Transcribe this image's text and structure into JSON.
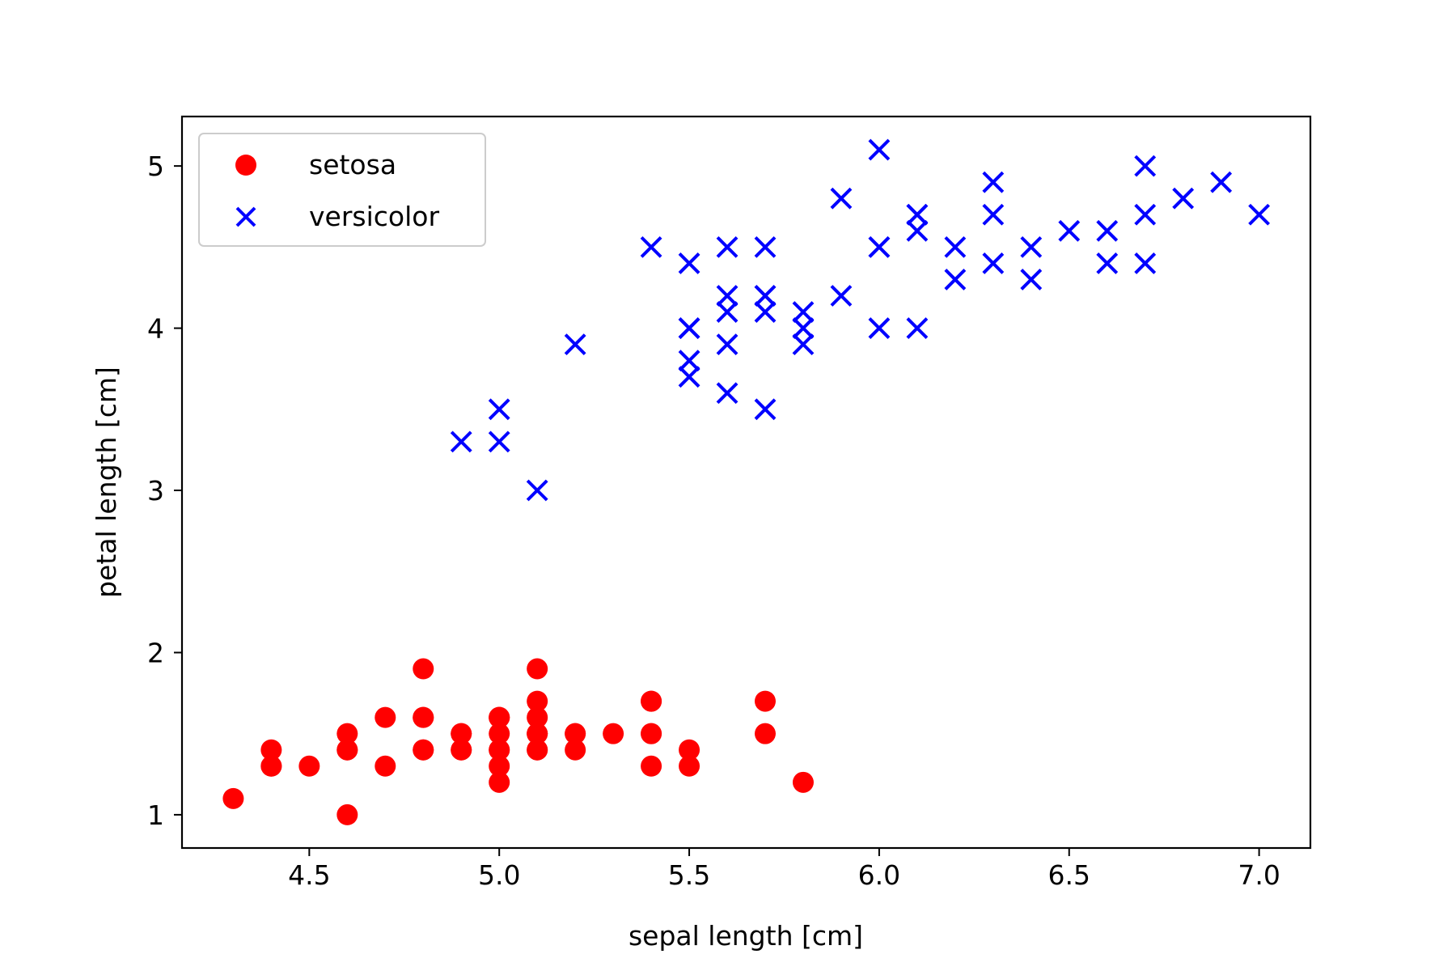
{
  "chart_data": {
    "type": "scatter",
    "title": "",
    "xlabel": "sepal length [cm]",
    "ylabel": "petal length [cm]",
    "xlim": [
      4.165,
      7.135
    ],
    "ylim": [
      0.795,
      5.305
    ],
    "xticks": [
      4.5,
      5.0,
      5.5,
      6.0,
      6.5,
      7.0
    ],
    "xtick_labels": [
      "4.5",
      "5.0",
      "5.5",
      "6.0",
      "6.5",
      "7.0"
    ],
    "yticks": [
      1,
      2,
      3,
      4,
      5
    ],
    "ytick_labels": [
      "1",
      "2",
      "3",
      "4",
      "5"
    ],
    "grid": false,
    "legend_position": "top-left",
    "series": [
      {
        "name": "setosa",
        "marker": "circle",
        "color": "#ff0000",
        "points": [
          [
            5.1,
            1.4
          ],
          [
            4.9,
            1.4
          ],
          [
            4.7,
            1.3
          ],
          [
            4.6,
            1.5
          ],
          [
            5.0,
            1.4
          ],
          [
            5.4,
            1.7
          ],
          [
            4.6,
            1.4
          ],
          [
            5.0,
            1.5
          ],
          [
            4.4,
            1.4
          ],
          [
            4.9,
            1.5
          ],
          [
            5.4,
            1.5
          ],
          [
            4.8,
            1.6
          ],
          [
            4.8,
            1.4
          ],
          [
            4.3,
            1.1
          ],
          [
            5.8,
            1.2
          ],
          [
            5.7,
            1.5
          ],
          [
            5.4,
            1.3
          ],
          [
            5.1,
            1.4
          ],
          [
            5.7,
            1.7
          ],
          [
            5.1,
            1.5
          ],
          [
            5.4,
            1.7
          ],
          [
            5.1,
            1.5
          ],
          [
            4.6,
            1.0
          ],
          [
            5.1,
            1.7
          ],
          [
            4.8,
            1.9
          ],
          [
            5.0,
            1.6
          ],
          [
            5.0,
            1.6
          ],
          [
            5.2,
            1.5
          ],
          [
            5.2,
            1.4
          ],
          [
            4.7,
            1.6
          ],
          [
            4.8,
            1.6
          ],
          [
            5.4,
            1.5
          ],
          [
            5.2,
            1.5
          ],
          [
            5.5,
            1.4
          ],
          [
            4.9,
            1.5
          ],
          [
            5.0,
            1.2
          ],
          [
            5.5,
            1.3
          ],
          [
            4.9,
            1.4
          ],
          [
            4.4,
            1.3
          ],
          [
            5.1,
            1.5
          ],
          [
            5.0,
            1.3
          ],
          [
            4.5,
            1.3
          ],
          [
            4.4,
            1.3
          ],
          [
            5.0,
            1.6
          ],
          [
            5.1,
            1.9
          ],
          [
            4.8,
            1.4
          ],
          [
            5.1,
            1.6
          ],
          [
            4.6,
            1.4
          ],
          [
            5.3,
            1.5
          ],
          [
            5.0,
            1.4
          ]
        ]
      },
      {
        "name": "versicolor",
        "marker": "x",
        "color": "#0000ff",
        "points": [
          [
            7.0,
            4.7
          ],
          [
            6.4,
            4.5
          ],
          [
            6.9,
            4.9
          ],
          [
            5.5,
            4.0
          ],
          [
            6.5,
            4.6
          ],
          [
            5.7,
            4.5
          ],
          [
            6.3,
            4.7
          ],
          [
            4.9,
            3.3
          ],
          [
            6.6,
            4.6
          ],
          [
            5.2,
            3.9
          ],
          [
            5.0,
            3.5
          ],
          [
            5.9,
            4.2
          ],
          [
            6.0,
            4.0
          ],
          [
            6.1,
            4.7
          ],
          [
            5.6,
            3.6
          ],
          [
            6.7,
            4.4
          ],
          [
            5.6,
            4.5
          ],
          [
            5.8,
            4.1
          ],
          [
            6.2,
            4.5
          ],
          [
            5.6,
            3.9
          ],
          [
            5.9,
            4.8
          ],
          [
            6.1,
            4.0
          ],
          [
            6.3,
            4.9
          ],
          [
            6.1,
            4.7
          ],
          [
            6.4,
            4.3
          ],
          [
            6.6,
            4.4
          ],
          [
            6.8,
            4.8
          ],
          [
            6.7,
            5.0
          ],
          [
            6.0,
            4.5
          ],
          [
            5.7,
            3.5
          ],
          [
            5.5,
            3.8
          ],
          [
            5.5,
            3.7
          ],
          [
            5.8,
            3.9
          ],
          [
            6.0,
            5.1
          ],
          [
            5.4,
            4.5
          ],
          [
            6.0,
            4.5
          ],
          [
            6.7,
            4.7
          ],
          [
            6.3,
            4.4
          ],
          [
            5.6,
            4.1
          ],
          [
            5.5,
            4.0
          ],
          [
            5.5,
            4.4
          ],
          [
            6.1,
            4.6
          ],
          [
            5.8,
            4.0
          ],
          [
            5.0,
            3.3
          ],
          [
            5.6,
            4.2
          ],
          [
            5.7,
            4.2
          ],
          [
            5.7,
            4.2
          ],
          [
            6.2,
            4.3
          ],
          [
            5.1,
            3.0
          ],
          [
            5.7,
            4.1
          ]
        ]
      }
    ]
  }
}
